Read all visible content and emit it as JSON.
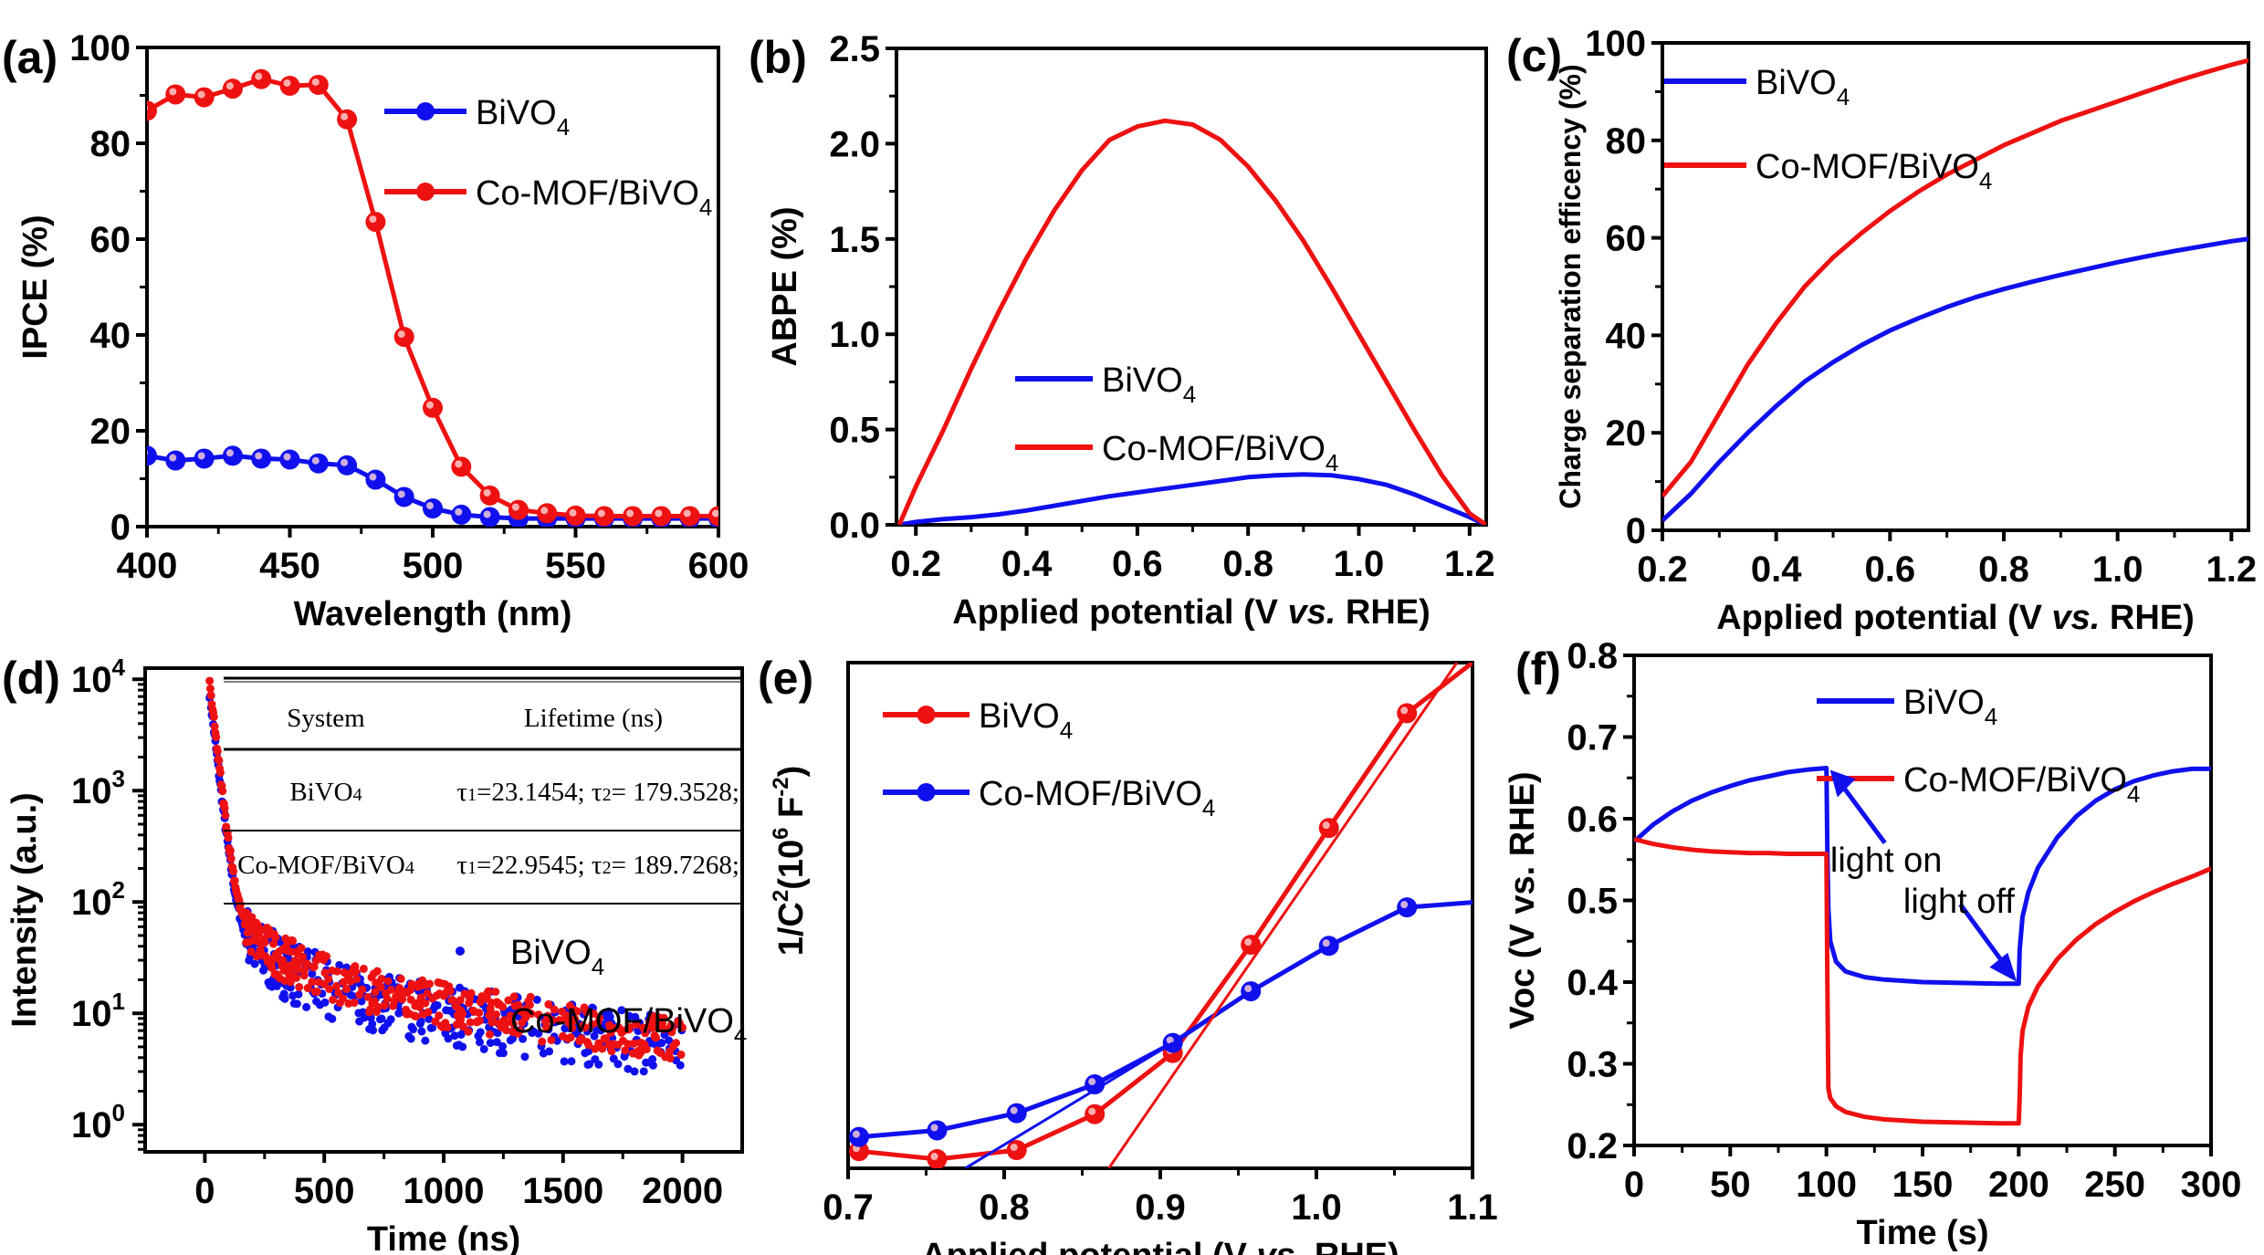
{
  "colors": {
    "blue": "#1010ee",
    "red": "#ee1111",
    "axis": "#000000"
  },
  "chart_data": [
    {
      "id": "a",
      "panel_label": "(a)",
      "type": "line",
      "xlabel": "Wavelength (nm)",
      "ylabel": "IPCE (%)",
      "xlim": [
        400,
        600
      ],
      "ylim": [
        0,
        100
      ],
      "xticks": [
        400,
        450,
        500,
        550,
        600
      ],
      "yticks": [
        0,
        20,
        40,
        60,
        80,
        100
      ],
      "legend": {
        "placement": "top-right",
        "markers": true
      },
      "x": [
        400,
        410,
        420,
        430,
        440,
        450,
        460,
        470,
        480,
        490,
        500,
        510,
        520,
        530,
        540,
        550,
        560,
        570,
        580,
        590,
        600
      ],
      "series": [
        {
          "name": "BiVO4",
          "name_main": "BiVO",
          "name_sub": "4",
          "color": "#1010ee",
          "values": [
            14.8,
            13.8,
            14.2,
            14.8,
            14.2,
            14.0,
            13.2,
            12.8,
            9.8,
            6.2,
            3.8,
            2.5,
            2.0,
            1.7,
            1.7,
            1.7,
            1.7,
            1.7,
            1.7,
            1.7,
            1.7
          ]
        },
        {
          "name": "Co-MOF/BiVO4",
          "name_main": "Co-MOF/BiVO",
          "name_sub": "4",
          "color": "#ee1111",
          "values": [
            86.8,
            90.2,
            89.6,
            91.4,
            93.4,
            92.0,
            92.2,
            85.0,
            63.6,
            39.6,
            24.8,
            12.5,
            6.5,
            3.5,
            2.8,
            2.3,
            2.2,
            2.2,
            2.2,
            2.2,
            2.2
          ]
        }
      ]
    },
    {
      "id": "b",
      "panel_label": "(b)",
      "type": "line",
      "xlabel": "Applied potential",
      "xlabel_unit_pre": "(V ",
      "xlabel_unit_italic": "vs.",
      "xlabel_unit_post": " RHE)",
      "ylabel": "ABPE (%)",
      "xlim": [
        0.165,
        1.23
      ],
      "ylim": [
        0,
        2.5
      ],
      "xticks": [
        0.2,
        0.4,
        0.6,
        0.8,
        1.0,
        1.2
      ],
      "yticks": [
        0.0,
        0.5,
        1.0,
        1.5,
        2.0,
        2.5
      ],
      "legend": {
        "placement": "center",
        "markers": false
      },
      "x": [
        0.17,
        0.2,
        0.25,
        0.3,
        0.35,
        0.4,
        0.45,
        0.5,
        0.55,
        0.6,
        0.65,
        0.7,
        0.75,
        0.8,
        0.85,
        0.9,
        0.95,
        1.0,
        1.05,
        1.1,
        1.15,
        1.2,
        1.23
      ],
      "series": [
        {
          "name": "BiVO4",
          "name_main": "BiVO",
          "name_sub": "4",
          "color": "#1010ee",
          "values": [
            0.0,
            0.015,
            0.03,
            0.04,
            0.055,
            0.075,
            0.1,
            0.125,
            0.15,
            0.17,
            0.19,
            0.21,
            0.23,
            0.25,
            0.26,
            0.265,
            0.26,
            0.24,
            0.21,
            0.16,
            0.1,
            0.04,
            0.0
          ]
        },
        {
          "name": "Co-MOF/BiVO4",
          "name_main": "Co-MOF/BiVO",
          "name_sub": "4",
          "color": "#ee1111",
          "values": [
            0.0,
            0.2,
            0.5,
            0.82,
            1.12,
            1.4,
            1.65,
            1.86,
            2.02,
            2.09,
            2.12,
            2.1,
            2.02,
            1.88,
            1.7,
            1.49,
            1.25,
            1.0,
            0.75,
            0.5,
            0.26,
            0.06,
            0.0
          ]
        }
      ]
    },
    {
      "id": "c",
      "panel_label": "(c)",
      "type": "line",
      "xlabel": "Applied potential",
      "xlabel_unit_pre": "(V ",
      "xlabel_unit_italic": "vs.",
      "xlabel_unit_post": " RHE)",
      "ylabel": "Charge separation efficency (%)",
      "xlim": [
        0.2,
        1.23
      ],
      "ylim": [
        0,
        100
      ],
      "xticks": [
        0.2,
        0.4,
        0.6,
        0.8,
        1.0,
        1.2
      ],
      "yticks": [
        0,
        20,
        40,
        60,
        80,
        100
      ],
      "legend": {
        "placement": "top-left",
        "markers": false
      },
      "x": [
        0.2,
        0.25,
        0.3,
        0.35,
        0.4,
        0.45,
        0.5,
        0.55,
        0.6,
        0.65,
        0.7,
        0.75,
        0.8,
        0.85,
        0.9,
        0.95,
        1.0,
        1.05,
        1.1,
        1.15,
        1.2,
        1.23
      ],
      "series": [
        {
          "name": "BiVO4",
          "name_main": "BiVO",
          "name_sub": "4",
          "color": "#1010ee",
          "values": [
            2.0,
            7.5,
            14.0,
            20.0,
            25.5,
            30.5,
            34.5,
            38.0,
            41.0,
            43.5,
            45.8,
            47.8,
            49.5,
            51.0,
            52.4,
            53.7,
            55.0,
            56.2,
            57.3,
            58.3,
            59.3,
            59.8
          ]
        },
        {
          "name": "Co-MOF/BiVO4",
          "name_main": "Co-MOF/BiVO",
          "name_sub": "4",
          "color": "#ee1111",
          "values": [
            7.0,
            14.0,
            24.0,
            34.0,
            42.5,
            50.0,
            56.0,
            61.0,
            65.5,
            69.5,
            73.0,
            76.0,
            79.0,
            81.5,
            84.0,
            86.0,
            88.0,
            90.0,
            92.0,
            93.8,
            95.5,
            96.4
          ]
        }
      ]
    },
    {
      "id": "d",
      "panel_label": "(d)",
      "type": "scatter",
      "xlabel": "Time (ns)",
      "ylabel": "Intensity (a.u.)",
      "yscale": "log",
      "xlim": [
        -250,
        2250
      ],
      "ylim": [
        0.57,
        12600
      ],
      "xticks": [
        0,
        500,
        1000,
        1500,
        2000
      ],
      "yticks": [
        1,
        10,
        100,
        1000,
        10000
      ],
      "ytick_labels": [
        {
          "base": "10",
          "exp": "0"
        },
        {
          "base": "10",
          "exp": "1"
        },
        {
          "base": "10",
          "exp": "2"
        },
        {
          "base": "10",
          "exp": "3"
        },
        {
          "base": "10",
          "exp": "4"
        }
      ],
      "legend": {
        "placement": "center-right",
        "markers": true
      },
      "decay_model": {
        "A1": 9000,
        "tau1_ns": 23,
        "A2": 70,
        "tau2_ns": 185,
        "A3": 22,
        "tau3_ns": 1400,
        "t0_ns": 20,
        "t_end_ns": 2000
      },
      "series": [
        {
          "name": "BiVO4",
          "name_main": "BiVO",
          "name_sub": "4",
          "color": "#1010ee",
          "scale": 0.82,
          "noise": 0.55
        },
        {
          "name": "Co-MOF/BiVO4",
          "name_main": "Co-MOF/BiVO",
          "name_sub": "4",
          "color": "#ee1111",
          "scale": 1.0,
          "noise": 0.4
        }
      ],
      "inset_table": {
        "headers": [
          "System",
          "Lifetime (ns)"
        ],
        "rows": [
          {
            "system": "BiVO4",
            "system_main": "BiVO",
            "system_sub": "4",
            "t1_label": "τ",
            "t1_sub": "1",
            "t1_value": "=23.1454; ",
            "t2_label": "τ",
            "t2_sub": "2",
            "t2_value": "= 179.3528;"
          },
          {
            "system": "Co-MOF/BiVO4",
            "system_main": "Co-MOF/BiVO",
            "system_sub": "4",
            "t1_label": "τ",
            "t1_sub": "1",
            "t1_value": "=22.9545; ",
            "t2_label": "τ",
            "t2_sub": "2",
            "t2_value": "= 189.7268;"
          }
        ]
      }
    },
    {
      "id": "e",
      "panel_label": "(e)",
      "type": "line",
      "xlabel": "Applied potential",
      "xlabel_unit_pre": "(V ",
      "xlabel_unit_italic": "vs.",
      "xlabel_unit_post": " RHE)",
      "ylabel_main": "1/C",
      "ylabel_sup": "2",
      "ylabel_mid": "(10",
      "ylabel_sup2": "6",
      "ylabel_end": " F",
      "ylabel_sup3": "-2",
      "ylabel_close": ")",
      "ylabel": "1/C^2 (10^6 F^-2)",
      "xlim": [
        0.7,
        1.1
      ],
      "ylim": [
        0,
        100
      ],
      "y_units_note": "relative (no y tick labels shown)",
      "xticks": [
        0.7,
        0.8,
        0.9,
        1.0,
        1.1
      ],
      "yticks": [],
      "legend": {
        "placement": "top-left",
        "markers": true
      },
      "x": [
        0.707,
        0.757,
        0.808,
        0.858,
        0.908,
        0.958,
        1.008,
        1.058
      ],
      "series": [
        {
          "name": "BiVO4",
          "name_main": "BiVO",
          "name_sub": "4",
          "color": "#ee1111",
          "values": [
            3.4,
            1.8,
            3.6,
            10.7,
            22.8,
            44.2,
            67.3,
            90.0
          ],
          "extend_to": {
            "x": 1.1,
            "y": 100
          }
        },
        {
          "name": "Co-MOF/BiVO4",
          "name_main": "Co-MOF/BiVO",
          "name_sub": "4",
          "color": "#1010ee",
          "values": [
            6.2,
            7.5,
            10.9,
            16.6,
            24.8,
            35.0,
            44.0,
            51.6
          ],
          "extend_to": {
            "x": 1.1,
            "y": 52.6
          }
        }
      ],
      "fit_lines": [
        {
          "name": "BiVO4 tangent",
          "color": "#ee1111",
          "points": [
            [
              0.867,
              0
            ],
            [
              1.09,
              100
            ]
          ]
        },
        {
          "name": "Co-MOF/BiVO4 tangent",
          "color": "#1010ee",
          "points": [
            [
              0.775,
              0
            ],
            [
              0.908,
              24.8
            ]
          ]
        }
      ]
    },
    {
      "id": "f",
      "panel_label": "(f)",
      "type": "line",
      "xlabel": "Time (s)",
      "ylabel": "Voc (V vs. RHE)",
      "ylabel_main": "Voc",
      "ylabel_unit": "(V vs. RHE)",
      "xlim": [
        0,
        300
      ],
      "ylim": [
        0.2,
        0.8
      ],
      "xticks": [
        0,
        50,
        100,
        150,
        200,
        250,
        300
      ],
      "yticks": [
        0.2,
        0.3,
        0.4,
        0.5,
        0.6,
        0.7,
        0.8
      ],
      "legend": {
        "placement": "top-center",
        "markers": false
      },
      "series": [
        {
          "name": "BiVO4",
          "name_main": "BiVO",
          "name_sub": "4",
          "color": "#1010ee",
          "x": [
            0,
            10,
            20,
            30,
            40,
            50,
            60,
            70,
            80,
            90,
            100,
            100.5,
            101,
            102,
            105,
            110,
            120,
            130,
            150,
            170,
            190,
            200,
            200.5,
            202,
            205,
            210,
            220,
            230,
            240,
            250,
            260,
            270,
            280,
            290,
            300
          ],
          "values": [
            0.572,
            0.593,
            0.609,
            0.622,
            0.632,
            0.64,
            0.647,
            0.652,
            0.657,
            0.66,
            0.662,
            0.56,
            0.49,
            0.45,
            0.425,
            0.413,
            0.406,
            0.403,
            0.4,
            0.399,
            0.398,
            0.398,
            0.44,
            0.48,
            0.51,
            0.54,
            0.577,
            0.603,
            0.622,
            0.636,
            0.646,
            0.653,
            0.658,
            0.661,
            0.661
          ]
        },
        {
          "name": "Co-MOF/BiVO4",
          "name_main": "Co-MOF/BiVO",
          "name_sub": "4",
          "color": "#ee1111",
          "x": [
            0,
            10,
            20,
            30,
            40,
            50,
            60,
            70,
            80,
            90,
            100,
            100.5,
            101,
            102,
            105,
            110,
            120,
            130,
            150,
            170,
            190,
            200,
            200.5,
            201,
            202,
            205,
            210,
            220,
            230,
            240,
            250,
            260,
            270,
            280,
            290,
            300
          ],
          "values": [
            0.575,
            0.569,
            0.565,
            0.562,
            0.56,
            0.559,
            0.558,
            0.558,
            0.557,
            0.557,
            0.557,
            0.4,
            0.27,
            0.258,
            0.248,
            0.241,
            0.235,
            0.232,
            0.229,
            0.228,
            0.227,
            0.227,
            0.26,
            0.31,
            0.34,
            0.37,
            0.395,
            0.428,
            0.452,
            0.471,
            0.486,
            0.499,
            0.51,
            0.52,
            0.529,
            0.539
          ]
        }
      ],
      "annotations": [
        {
          "text": "light on",
          "points_to": {
            "x": 100,
            "y": 0.662
          }
        },
        {
          "text": "light off",
          "points_to": {
            "x": 200,
            "y": 0.398
          }
        }
      ]
    }
  ]
}
